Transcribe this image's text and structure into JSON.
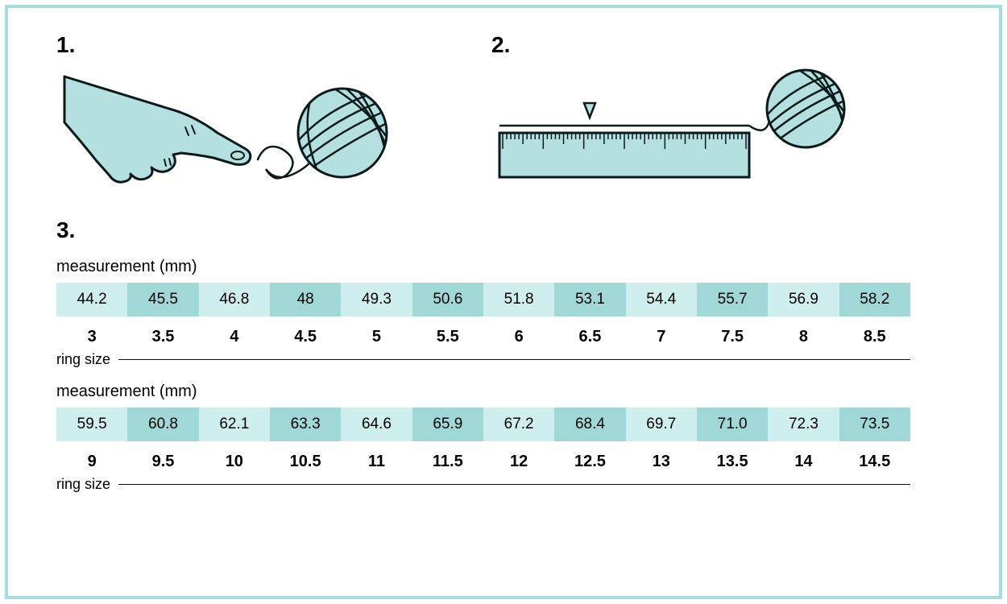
{
  "colors": {
    "frame_border": "#a5dede",
    "light_teal": "#cfeeee",
    "mid_teal": "#a0d8d8",
    "illus_fill": "#b4e0e0",
    "stroke": "#0a1a1a",
    "text": "#111"
  },
  "step1": {
    "num": "1."
  },
  "step2": {
    "num": "2."
  },
  "step3": {
    "num": "3."
  },
  "measurement_label": "measurement (mm)",
  "ring_size_label": "ring size",
  "table1": {
    "mm": [
      "44.2",
      "45.5",
      "46.8",
      "48",
      "49.3",
      "50.6",
      "51.8",
      "53.1",
      "54.4",
      "55.7",
      "56.9",
      "58.2"
    ],
    "size": [
      "3",
      "3.5",
      "4",
      "4.5",
      "5",
      "5.5",
      "6",
      "6.5",
      "7",
      "7.5",
      "8",
      "8.5"
    ]
  },
  "table2": {
    "mm": [
      "59.5",
      "60.8",
      "62.1",
      "63.3",
      "64.6",
      "65.9",
      "67.2",
      "68.4",
      "69.7",
      "71.0",
      "72.3",
      "73.5"
    ],
    "size": [
      "9",
      "9.5",
      "10",
      "10.5",
      "11",
      "11.5",
      "12",
      "12.5",
      "13",
      "13.5",
      "14",
      "14.5"
    ]
  },
  "typography": {
    "step_num_fontsize": 28,
    "label_fontsize": 20,
    "mm_fontsize": 19,
    "size_fontsize": 20,
    "ring_label_fontsize": 18
  }
}
